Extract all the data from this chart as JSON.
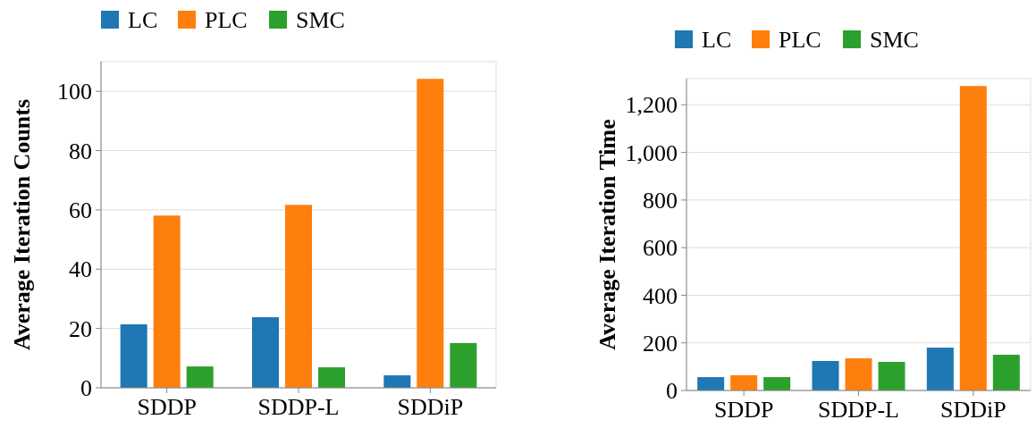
{
  "chart_data": [
    {
      "type": "bar",
      "ylabel": "Average Iteration Counts",
      "categories": [
        "SDDP",
        "SDDP-L",
        "SDDiP"
      ],
      "series": [
        {
          "name": "LC",
          "color": "#1f77b4",
          "values": [
            21.4,
            23.8,
            4.2
          ]
        },
        {
          "name": "PLC",
          "color": "#ff7f0e",
          "values": [
            58.1,
            61.7,
            104.2
          ]
        },
        {
          "name": "SMC",
          "color": "#2ca02c",
          "values": [
            7.2,
            6.9,
            15.1
          ]
        }
      ],
      "ylim": [
        0,
        110
      ],
      "yticks": [
        0,
        20,
        40,
        60,
        80,
        100
      ],
      "grid": "y",
      "legend": "top left"
    },
    {
      "type": "bar",
      "ylabel": "Average Iteration Time",
      "categories": [
        "SDDP",
        "SDDP-L",
        "SDDiP"
      ],
      "series": [
        {
          "name": "LC",
          "color": "#1f77b4",
          "values": [
            56,
            124,
            180
          ]
        },
        {
          "name": "PLC",
          "color": "#ff7f0e",
          "values": [
            64,
            135,
            1279
          ]
        },
        {
          "name": "SMC",
          "color": "#2ca02c",
          "values": [
            56,
            120,
            150
          ]
        }
      ],
      "ylim": [
        0,
        1310
      ],
      "yticks": [
        0,
        200,
        400,
        600,
        800,
        {
          "value": 1000,
          "label": "1,000"
        },
        {
          "value": 1200,
          "label": "1,200"
        }
      ],
      "grid": "y",
      "legend": "top left"
    }
  ]
}
